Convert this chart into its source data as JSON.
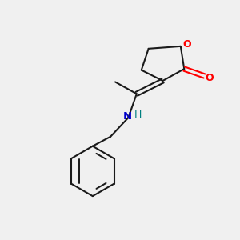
{
  "background_color": "#f0f0f0",
  "bond_color": "#1a1a1a",
  "o_color": "#ff0000",
  "n_color": "#0000cc",
  "h_color": "#008080",
  "fig_size": [
    3.0,
    3.0
  ],
  "dpi": 100,
  "lw": 1.5,
  "xlim": [
    0,
    10
  ],
  "ylim": [
    0,
    10
  ]
}
